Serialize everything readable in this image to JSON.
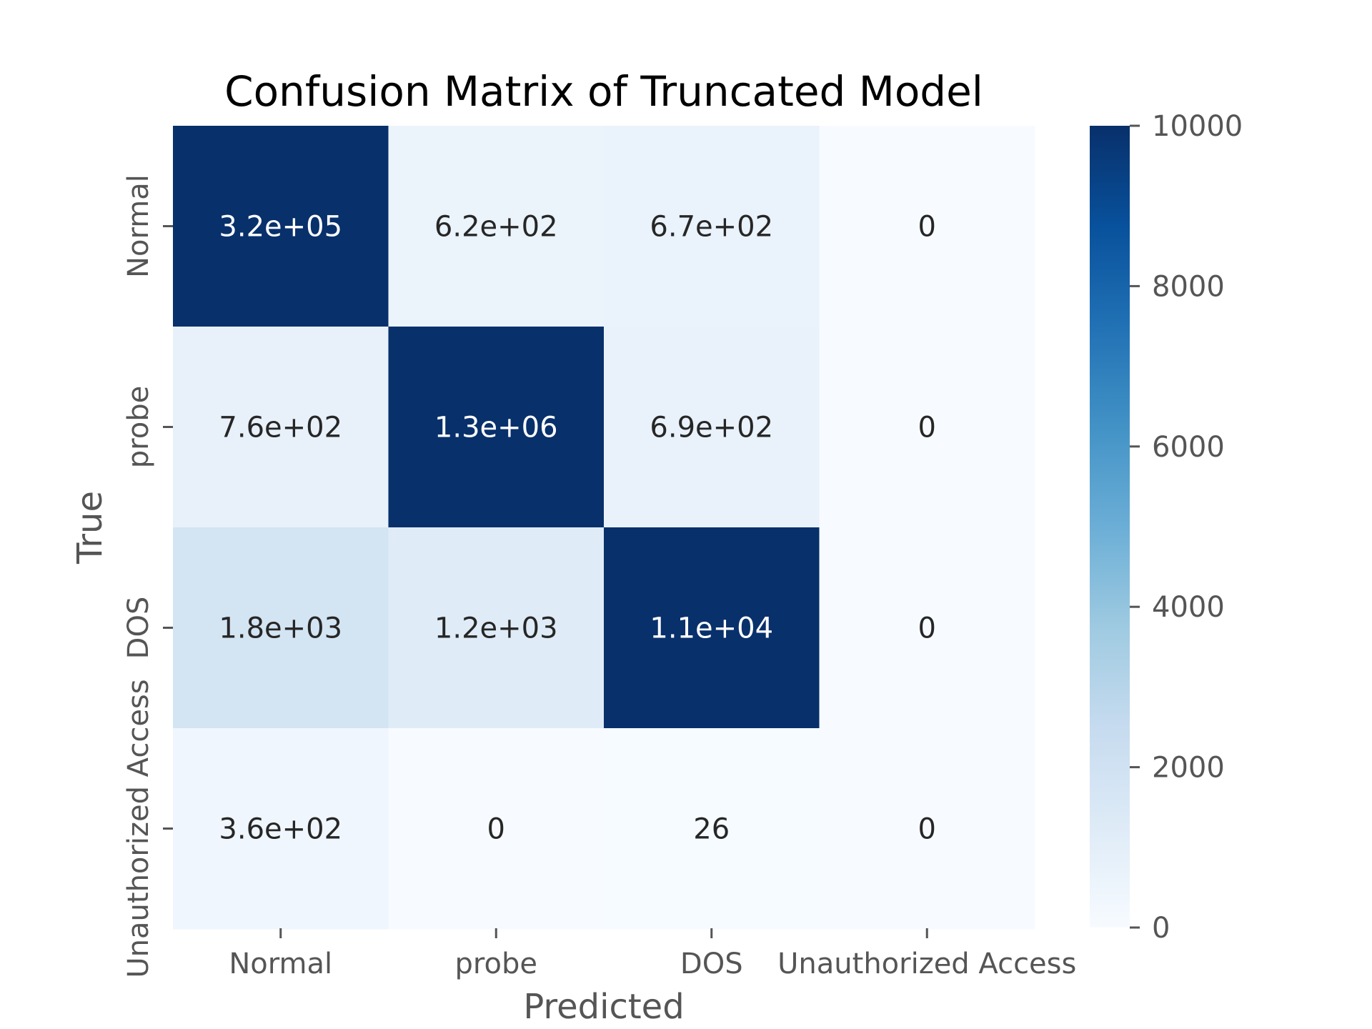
{
  "chart_data": {
    "type": "heatmap",
    "title": "Confusion Matrix of Truncated Model",
    "xlabel": "Predicted",
    "ylabel": "True",
    "x_categories": [
      "Normal",
      "probe",
      "DOS",
      "Unauthorized Access"
    ],
    "y_categories": [
      "Normal",
      "probe",
      "DOS",
      "Unauthorized Access"
    ],
    "values": [
      [
        320000,
        620,
        670,
        0
      ],
      [
        760,
        1300000,
        690,
        0
      ],
      [
        1800,
        1200,
        11000,
        0
      ],
      [
        360,
        0,
        26,
        0
      ]
    ],
    "annotations": [
      [
        "3.2e+05",
        "6.2e+02",
        "6.7e+02",
        "0"
      ],
      [
        "7.6e+02",
        "1.3e+06",
        "6.9e+02",
        "0"
      ],
      [
        "1.8e+03",
        "1.2e+03",
        "1.1e+04",
        "0"
      ],
      [
        "3.6e+02",
        "0",
        "26",
        "0"
      ]
    ],
    "colormap": "Blues",
    "vmin": 0,
    "vmax": 10000,
    "colorbar_ticks": [
      0,
      2000,
      4000,
      6000,
      8000,
      10000
    ],
    "colorbar_tick_labels": [
      "0",
      "2000",
      "4000",
      "6000",
      "8000",
      "10000"
    ],
    "grid": false,
    "legend": "colorbar-right"
  }
}
